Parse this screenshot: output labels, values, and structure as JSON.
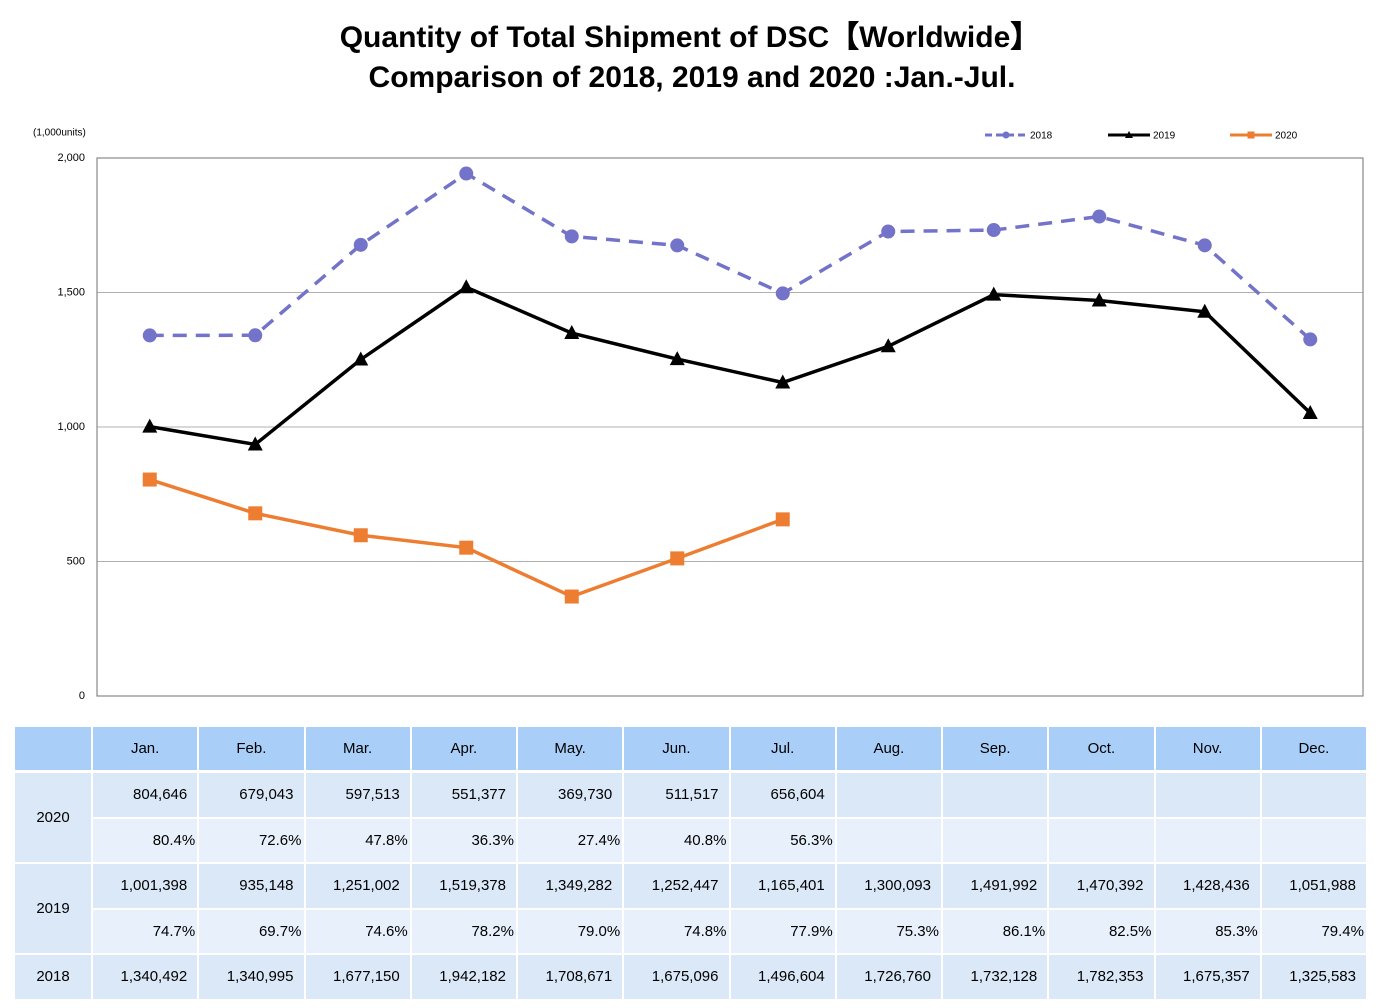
{
  "chart_data": {
    "type": "line",
    "title": "Quantity of Total Shipment of DSC【Worldwide】",
    "subtitle": "Comparison of 2018, 2019 and 2020 :Jan.-Jul.",
    "y_label": "(1,000units)",
    "categories": [
      "Jan.",
      "Feb.",
      "Mar.",
      "Apr.",
      "May.",
      "Jun.",
      "Jul.",
      "Aug.",
      "Sep.",
      "Oct.",
      "Nov.",
      "Dec."
    ],
    "series": [
      {
        "name": "2018",
        "color": "#7373c9",
        "dash": true,
        "marker": "circle",
        "values": [
          1340.492,
          1340.995,
          1677.15,
          1942.182,
          1708.671,
          1675.096,
          1496.604,
          1726.76,
          1732.128,
          1782.353,
          1675.357,
          1325.583
        ]
      },
      {
        "name": "2019",
        "color": "#000000",
        "dash": false,
        "marker": "triangle",
        "values": [
          1001.398,
          935.148,
          1251.002,
          1519.378,
          1349.282,
          1252.447,
          1165.401,
          1300.093,
          1491.992,
          1470.392,
          1428.436,
          1051.988
        ]
      },
      {
        "name": "2020",
        "color": "#ed7d31",
        "dash": false,
        "marker": "square",
        "values": [
          804.646,
          679.043,
          597.513,
          551.377,
          369.73,
          511.517,
          656.604,
          null,
          null,
          null,
          null,
          null
        ]
      }
    ],
    "ylim": [
      0,
      2000
    ],
    "yticks": [
      0,
      500,
      {
        "value": 1000,
        "label": "1,000"
      },
      {
        "value": 1500,
        "label": "1,500"
      },
      {
        "value": 2000,
        "label": "2,000"
      }
    ],
    "grid": true,
    "legend": "top-right"
  },
  "table": {
    "rows": [
      {
        "label": "2020",
        "values": [
          "804,646",
          "679,043",
          "597,513",
          "551,377",
          "369,730",
          "511,517",
          "656,604"
        ],
        "ratios": [
          "80.4%",
          "72.6%",
          "47.8%",
          "36.3%",
          "27.4%",
          "40.8%",
          "56.3%"
        ]
      },
      {
        "label": "2019",
        "values": [
          "1,001,398",
          "935,148",
          "1,251,002",
          "1,519,378",
          "1,349,282",
          "1,252,447",
          "1,165,401",
          "1,300,093",
          "1,491,992",
          "1,470,392",
          "1,428,436",
          "1,051,988"
        ],
        "ratios": [
          "74.7%",
          "69.7%",
          "74.6%",
          "78.2%",
          "79.0%",
          "74.8%",
          "77.9%",
          "75.3%",
          "86.1%",
          "82.5%",
          "85.3%",
          "79.4%"
        ]
      },
      {
        "label": "2018",
        "values": [
          "1,340,492",
          "1,340,995",
          "1,677,150",
          "1,942,182",
          "1,708,671",
          "1,675,096",
          "1,496,604",
          "1,726,760",
          "1,732,128",
          "1,782,353",
          "1,675,357",
          "1,325,583"
        ]
      }
    ]
  }
}
